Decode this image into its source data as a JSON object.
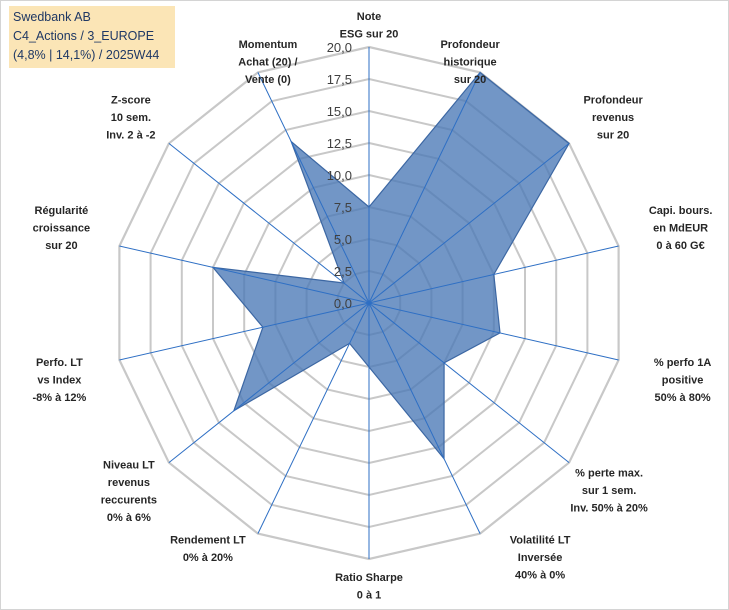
{
  "title_lines": [
    "Swedbank AB",
    "C4_Actions / 3_EUROPE",
    "(4,8% | 14,1%) / 2025W44"
  ],
  "chart_data": {
    "type": "radar",
    "ylim": [
      0,
      20
    ],
    "tick_labels": [
      "0,0",
      "2,5",
      "5,0",
      "7,5",
      "10,0",
      "12,5",
      "15,0",
      "17,5",
      "20,0"
    ],
    "categories": [
      [
        "Note",
        "ESG sur 20"
      ],
      [
        "Profondeur",
        "historique",
        "sur 20"
      ],
      [
        "Profondeur",
        "revenus",
        "sur 20"
      ],
      [
        "Capi. bours.",
        "en MdEUR",
        "0 à 60 G€"
      ],
      [
        "% perfo 1A",
        "positive",
        "50% à 80%"
      ],
      [
        "% perte max.",
        "sur 1 sem.",
        "Inv. 50% à 20%"
      ],
      [
        "Volatilité LT",
        "Inversée",
        "40% à 0%"
      ],
      [
        "Ratio Sharpe",
        "0 à 1"
      ],
      [
        "Rendement LT",
        "0% à 20%"
      ],
      [
        "Niveau LT",
        "revenus",
        "reccurents",
        "0% à 6%"
      ],
      [
        "Perfo. LT",
        "vs Index",
        "-8% à 12%"
      ],
      [
        "Régularité",
        "croissance",
        "sur 20"
      ],
      [
        "Z-score",
        "10 sem.",
        "Inv. 2 à -2"
      ],
      [
        "Momentum",
        "Achat (20) /",
        "Vente (0)"
      ]
    ],
    "series": [
      {
        "values": [
          7.5,
          20.0,
          20.0,
          10.0,
          10.5,
          7.5,
          13.5,
          5.0,
          3.5,
          13.5,
          8.5,
          12.5,
          2.5,
          14.0
        ],
        "color": "#4a78b6"
      }
    ],
    "grid": true,
    "grid_color": "#c8c8c8",
    "spoke_color": "#2e6fc4"
  }
}
